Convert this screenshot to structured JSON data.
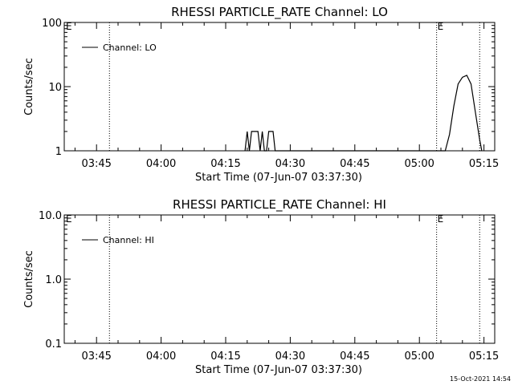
{
  "footer_timestamp": "15-Oct-2021 14:54",
  "chart_data": [
    {
      "type": "line",
      "title": "RHESSI PARTICLE_RATE Channel: LO",
      "xlabel": "Start Time (07-Jun-07 03:37:30)",
      "ylabel": "Counts/sec",
      "y_scale": "log",
      "ylim": [
        1,
        100
      ],
      "y_ticks": [
        {
          "value": 1,
          "label": "1"
        },
        {
          "value": 10,
          "label": "10"
        },
        {
          "value": 100,
          "label": "100"
        }
      ],
      "xlim": [
        "03:37:30",
        "05:17:30"
      ],
      "x_ticks": [
        "03:45",
        "04:00",
        "04:15",
        "04:30",
        "04:45",
        "05:00",
        "05:15"
      ],
      "legend": {
        "label": "Channel: LO",
        "position": "top-left"
      },
      "marker_E_left": "E",
      "marker_E_right": "E",
      "vlines": [
        "03:48",
        "05:04",
        "05:14"
      ],
      "series": [
        {
          "name": "Channel: LO",
          "points": [
            [
              "04:19:30",
              1
            ],
            [
              "04:20:00",
              2
            ],
            [
              "04:20:30",
              1
            ],
            [
              "04:21:00",
              2
            ],
            [
              "04:22:30",
              2
            ],
            [
              "04:23:00",
              1
            ],
            [
              "04:23:30",
              2
            ],
            [
              "04:24:00",
              1
            ],
            [
              "04:24:30",
              1
            ],
            [
              "04:25:00",
              2
            ],
            [
              "04:26:00",
              2
            ],
            [
              "04:26:30",
              1
            ],
            [
              "05:06:00",
              1
            ],
            [
              "05:07:00",
              1.8
            ],
            [
              "05:08:00",
              5
            ],
            [
              "05:09:00",
              11
            ],
            [
              "05:10:00",
              14
            ],
            [
              "05:11:00",
              15
            ],
            [
              "05:12:00",
              11
            ],
            [
              "05:13:00",
              4
            ],
            [
              "05:14:00",
              1.5
            ],
            [
              "05:14:30",
              1
            ]
          ]
        }
      ]
    },
    {
      "type": "line",
      "title": "RHESSI PARTICLE_RATE Channel: HI",
      "xlabel": "Start Time (07-Jun-07 03:37:30)",
      "ylabel": "Counts/sec",
      "y_scale": "log",
      "ylim": [
        0.1,
        10
      ],
      "y_ticks": [
        {
          "value": 0.1,
          "label": "0.1"
        },
        {
          "value": 1,
          "label": "1.0"
        },
        {
          "value": 10,
          "label": "10.0"
        }
      ],
      "xlim": [
        "03:37:30",
        "05:17:30"
      ],
      "x_ticks": [
        "03:45",
        "04:00",
        "04:15",
        "04:30",
        "04:45",
        "05:00",
        "05:15"
      ],
      "legend": {
        "label": "Channel: HI",
        "position": "top-left"
      },
      "marker_E_left": "E",
      "marker_E_right": "E",
      "vlines": [
        "03:48",
        "05:04",
        "05:14"
      ],
      "series": [
        {
          "name": "Channel: HI",
          "points": []
        }
      ]
    }
  ]
}
